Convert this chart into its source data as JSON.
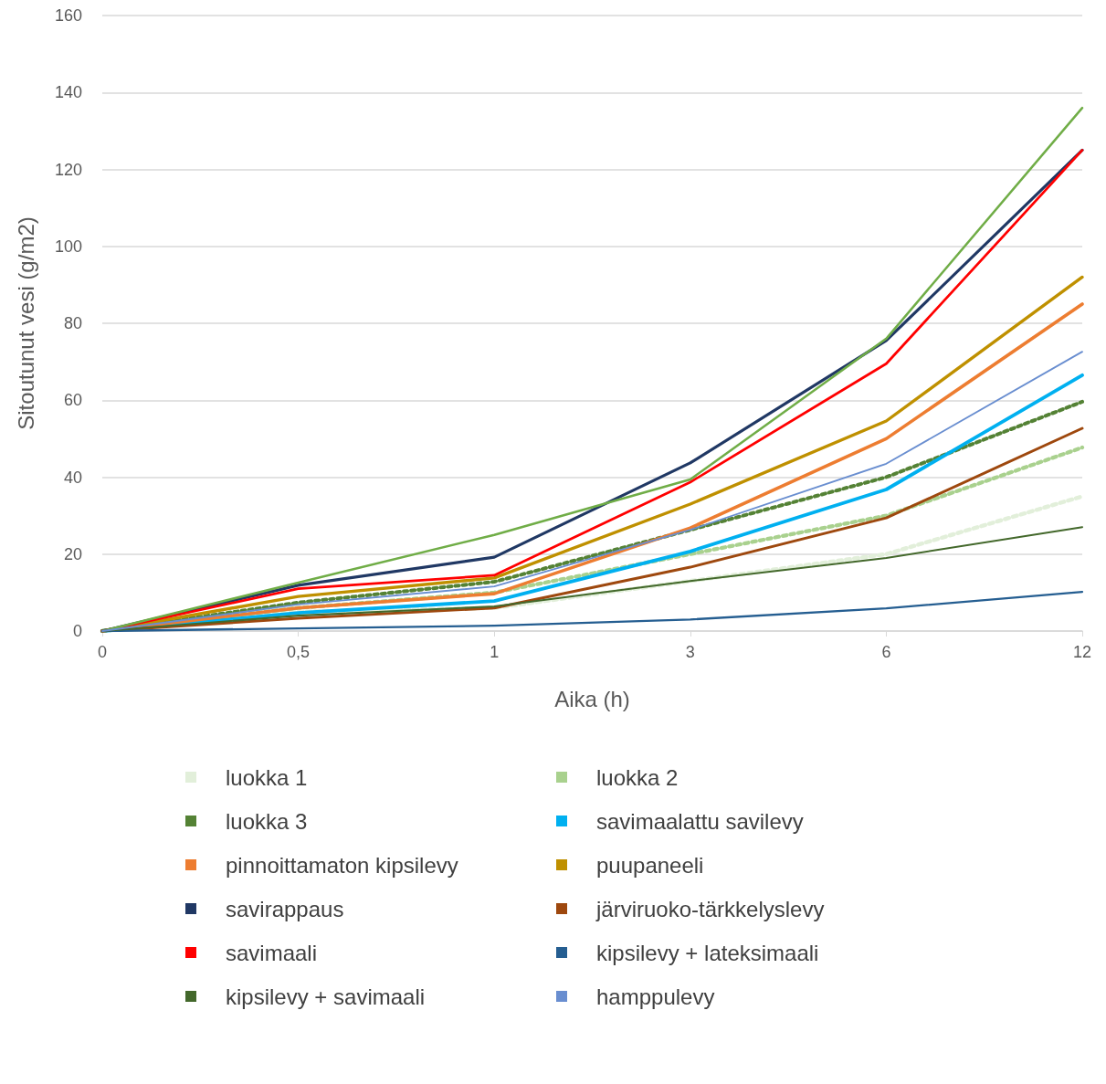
{
  "chart_data": {
    "type": "line",
    "xlabel": "Aika (h)",
    "ylabel": "Sitoutunut vesi (g/m2)",
    "categories": [
      "0",
      "0,5",
      "1",
      "3",
      "6",
      "12"
    ],
    "ylim": [
      0,
      160
    ],
    "yticks": [
      0,
      20,
      40,
      60,
      80,
      100,
      120,
      140,
      160
    ],
    "grid": "y",
    "legend": "bottom",
    "marker": "none",
    "line_style": "solid",
    "series": [
      {
        "name": "luokka 1",
        "color": "#e2efda",
        "line_style": "dotted",
        "values": [
          0,
          5,
          6,
          13,
          20,
          35
        ]
      },
      {
        "name": "luokka 2",
        "color": "#a9d18e",
        "line_style": "dotted",
        "values": [
          0,
          6,
          10,
          20,
          30,
          47.7
        ]
      },
      {
        "name": "luokka 3",
        "color": "#548235",
        "line_style": "dotted",
        "values": [
          0,
          7.4,
          12.8,
          26.3,
          40,
          59.6
        ]
      },
      {
        "name": "savimaalattu savilevy",
        "color": "#00b0f0",
        "values": [
          0,
          4.7,
          7.8,
          20.7,
          36.8,
          66.5
        ]
      },
      {
        "name": "pinnoittamaton kipsilevy",
        "color": "#ed7d31",
        "values": [
          0,
          6,
          9.7,
          26.8,
          50,
          85
        ]
      },
      {
        "name": "puupaneeli",
        "color": "#bf9000",
        "values": [
          0,
          9,
          13.8,
          33,
          54.6,
          92
        ]
      },
      {
        "name": "savirappaus",
        "color": "#203864",
        "values": [
          0,
          11.9,
          19.2,
          43.7,
          75.5,
          125
        ]
      },
      {
        "name": "järviruoko-tärkkelyslevy",
        "color": "#9e480e",
        "values": [
          0,
          3.3,
          6,
          16.6,
          29.4,
          52.7
        ]
      },
      {
        "name": "savimaali",
        "color": "#ff0000",
        "values": [
          0,
          11,
          14.5,
          38.7,
          69.5,
          125
        ]
      },
      {
        "color": "#70ad47",
        "values": [
          0,
          12.6,
          25,
          39.4,
          76,
          136
        ]
      },
      {
        "name": "kipsilevy + lateksimaali",
        "color": "#255e91",
        "values": [
          0,
          0.7,
          1.4,
          3,
          5.9,
          10.2
        ]
      },
      {
        "name": "kipsilevy + savimaali",
        "color": "#43682b",
        "values": [
          0,
          4,
          6.4,
          13,
          19,
          27
        ]
      },
      {
        "name": "hamppulevy",
        "color": "#698ed0",
        "values": [
          0,
          6.9,
          11.6,
          26.3,
          43.5,
          72.6
        ]
      }
    ]
  }
}
